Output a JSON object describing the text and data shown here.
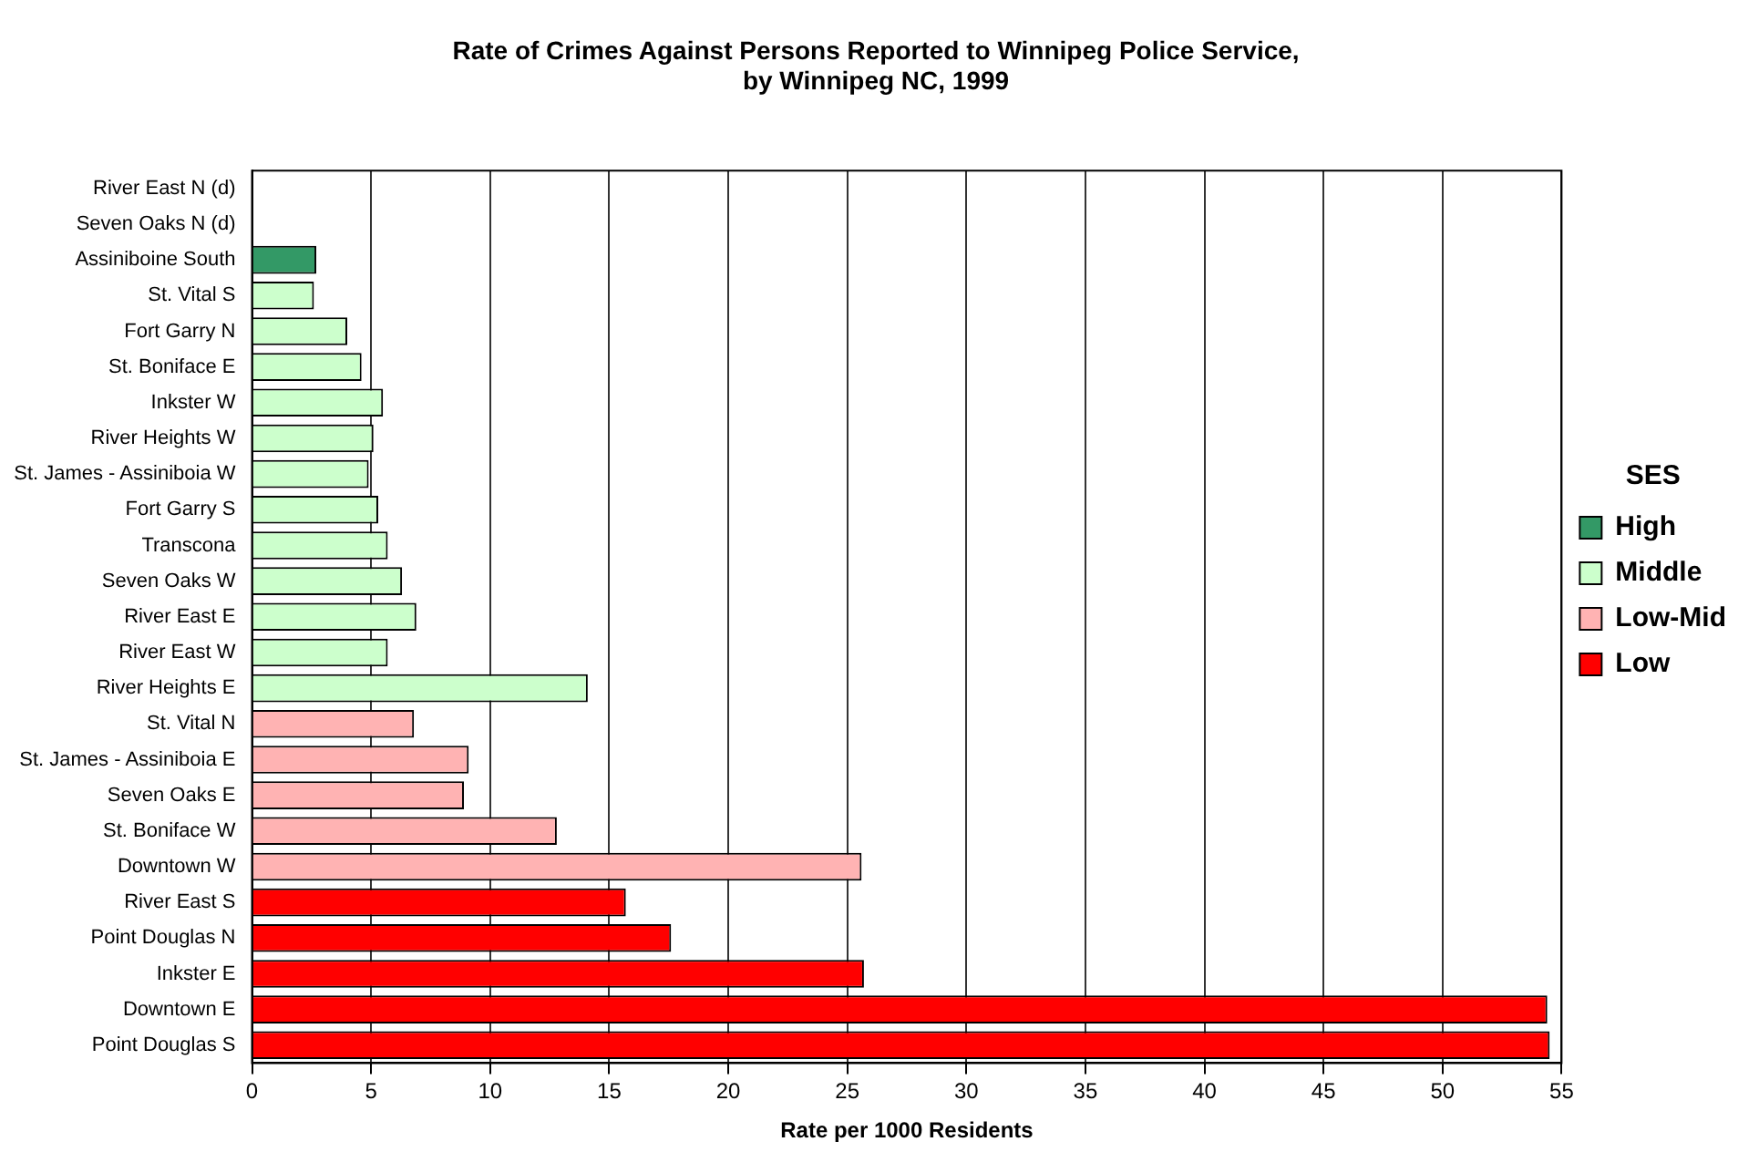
{
  "chart_data": {
    "type": "bar",
    "orientation": "horizontal",
    "stacked": true,
    "title": [
      "Rate of Crimes Against Persons Reported to Winnipeg Police Service,",
      "by Winnipeg NC, 1999"
    ],
    "xlabel": "Rate per 1000 Residents",
    "legend_title": "SES",
    "legend": "right",
    "grid": "x",
    "categories": [
      "River East N (d)",
      "Seven Oaks N (d)",
      "Assiniboine South",
      "St. Vital S",
      "Fort Garry N",
      "St. Boniface E",
      "Inkster W",
      "River Heights W",
      "St. James - Assiniboia W",
      "Fort Garry S",
      "Transcona",
      "Seven Oaks W",
      "River East E",
      "River East W",
      "River Heights E",
      "St. Vital N",
      "St. James - Assiniboia E",
      "Seven Oaks E",
      "St. Boniface W",
      "Downtown W",
      "River East S",
      "Point Douglas N",
      "Inkster E",
      "Downtown E",
      "Point Douglas S"
    ],
    "xlim": [
      0,
      55
    ],
    "xticks": [
      0,
      5,
      10,
      15,
      20,
      25,
      30,
      35,
      40,
      45,
      50,
      55
    ],
    "series": [
      {
        "name": "High",
        "color": "#339966",
        "values": [
          null,
          null,
          2.7,
          null,
          null,
          null,
          null,
          null,
          null,
          null,
          null,
          null,
          null,
          null,
          null,
          null,
          null,
          null,
          null,
          null,
          null,
          null,
          null,
          null,
          null
        ]
      },
      {
        "name": "Middle",
        "color": "#ccffcc",
        "values": [
          null,
          null,
          null,
          2.6,
          4.0,
          4.6,
          5.5,
          5.1,
          4.9,
          5.3,
          5.7,
          6.3,
          6.9,
          5.7,
          14.1,
          null,
          null,
          null,
          null,
          null,
          null,
          null,
          null,
          null,
          null
        ]
      },
      {
        "name": "Low-Mid",
        "color": "#ffb3b3",
        "values": [
          null,
          null,
          null,
          null,
          null,
          null,
          null,
          null,
          null,
          null,
          null,
          null,
          null,
          null,
          null,
          6.8,
          9.1,
          8.9,
          12.8,
          25.6,
          null,
          null,
          null,
          null,
          null
        ]
      },
      {
        "name": "Low",
        "color": "#ff0000",
        "values": [
          null,
          null,
          null,
          null,
          null,
          null,
          null,
          null,
          null,
          null,
          null,
          null,
          null,
          null,
          null,
          null,
          null,
          null,
          null,
          null,
          15.7,
          17.6,
          25.7,
          54.4,
          54.5
        ]
      }
    ]
  }
}
